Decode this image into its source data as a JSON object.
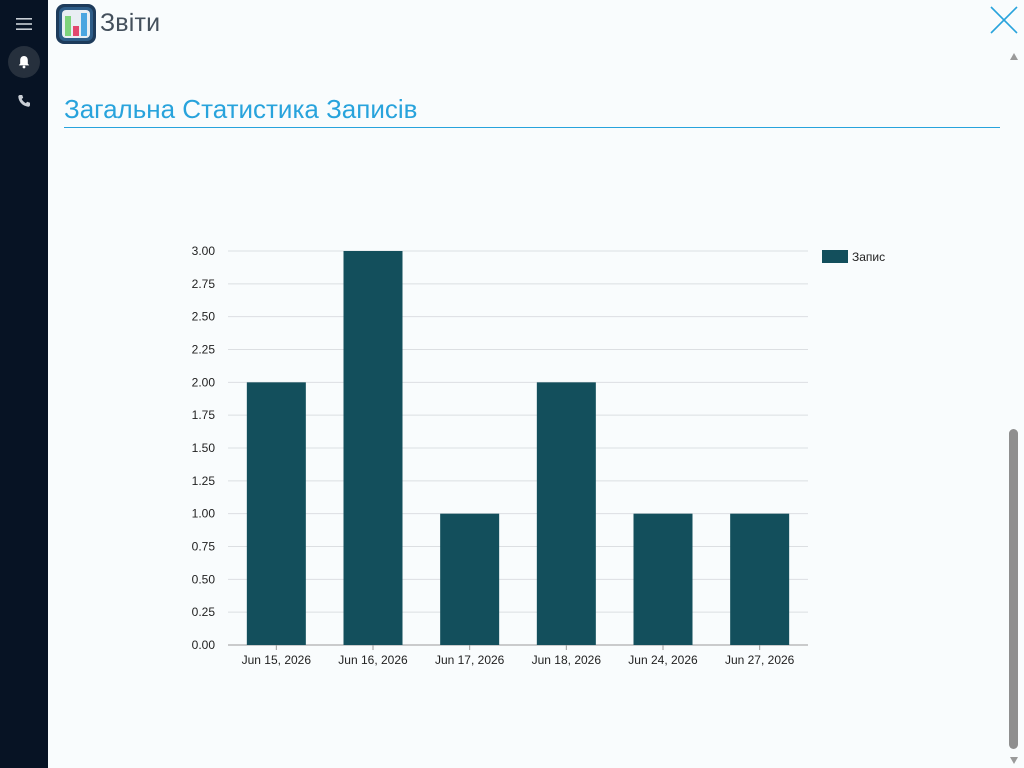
{
  "app": {
    "title": "Звіти"
  },
  "sidebar": {
    "items": [
      {
        "icon": "menu-icon"
      },
      {
        "icon": "bell-icon",
        "active": true
      },
      {
        "icon": "phone-icon"
      }
    ]
  },
  "section": {
    "title": "Загальна Статистика Записів"
  },
  "colors": {
    "bar": "#134f5c",
    "title": "#28a3dc",
    "sidebar": "#071324"
  },
  "chart_data": {
    "type": "bar",
    "categories": [
      "Jun 15, 2026",
      "Jun 16, 2026",
      "Jun 17, 2026",
      "Jun 18, 2026",
      "Jun 24, 2026",
      "Jun 27, 2026"
    ],
    "series": [
      {
        "name": "Запис",
        "values": [
          2,
          3,
          1,
          2,
          1,
          1
        ]
      }
    ],
    "ylim": [
      0,
      3
    ],
    "yticks": [
      "0.00",
      "0.25",
      "0.50",
      "0.75",
      "1.00",
      "1.25",
      "1.50",
      "1.75",
      "2.00",
      "2.25",
      "2.50",
      "2.75",
      "3.00"
    ],
    "grid": true,
    "legend": "top-right"
  }
}
